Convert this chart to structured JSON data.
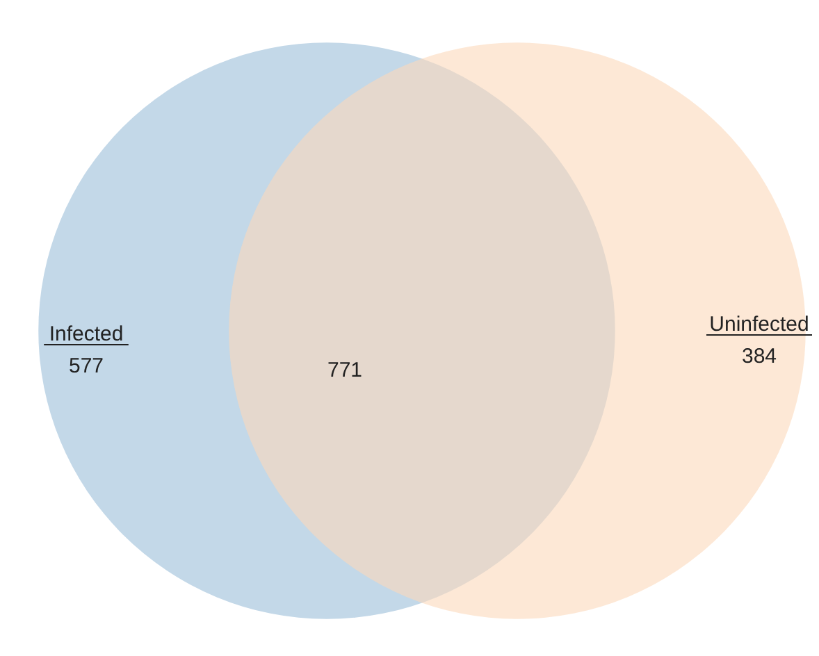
{
  "chart_data": {
    "type": "other",
    "categories": [
      "Infected",
      null,
      "Uninfected"
    ],
    "values": [
      577,
      771,
      384
    ],
    "colors": [
      "#c3d8e8",
      "#d8c5b3",
      "#fcd9bb"
    ],
    "data_labels": true
  }
}
